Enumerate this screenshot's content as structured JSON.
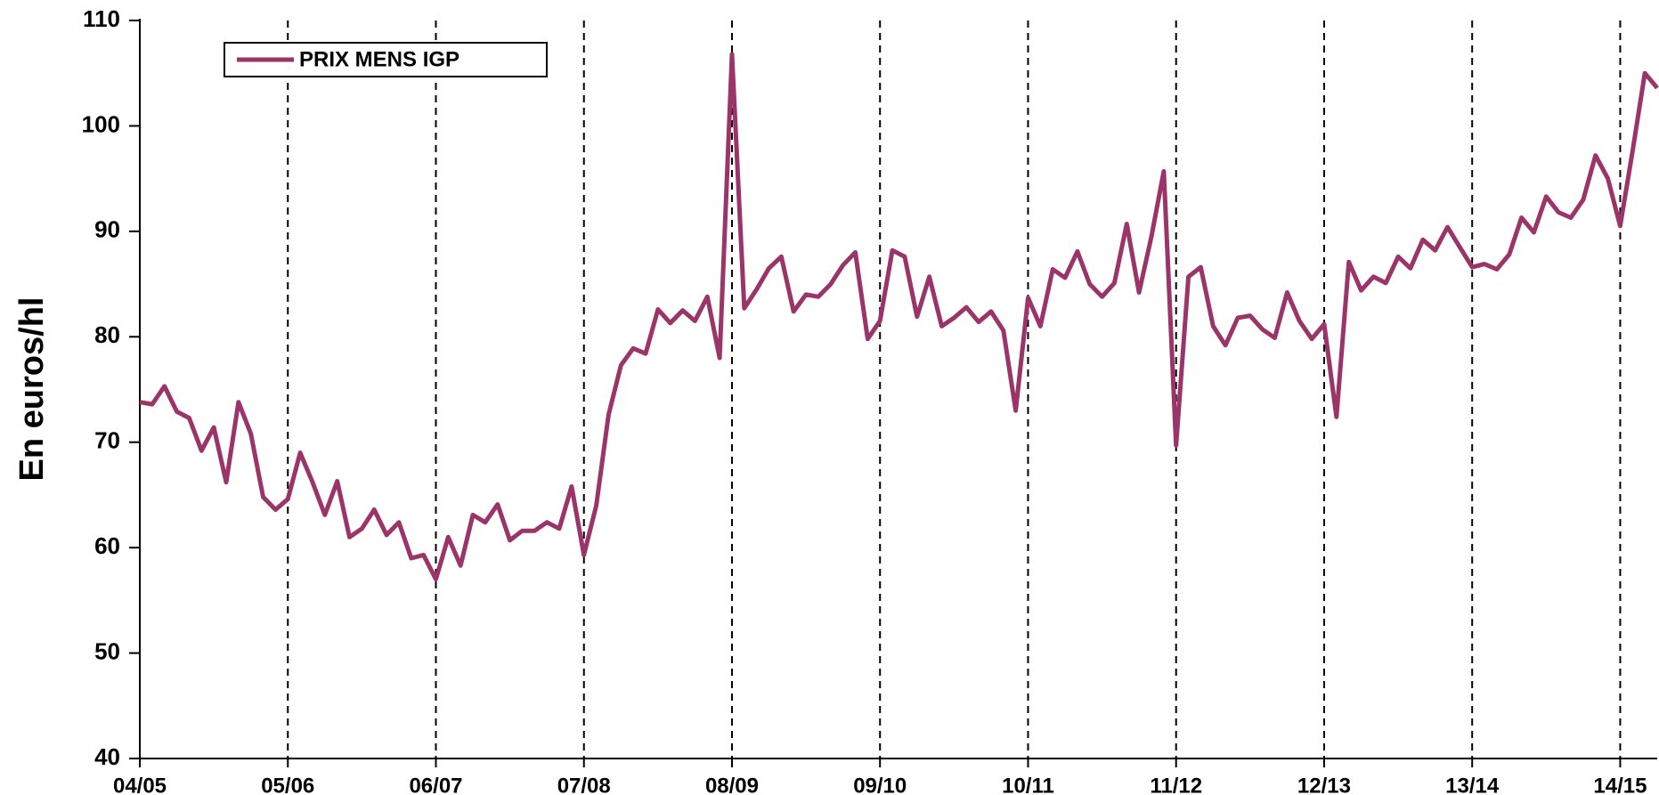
{
  "chart_data": {
    "type": "line",
    "y_label": "En euros/hl",
    "categories": [
      "04/05",
      null,
      null,
      null,
      null,
      null,
      null,
      null,
      null,
      null,
      null,
      null,
      "05/06",
      null,
      null,
      null,
      null,
      null,
      null,
      null,
      null,
      null,
      null,
      null,
      "06/07",
      null,
      null,
      null,
      null,
      null,
      null,
      null,
      null,
      null,
      null,
      null,
      "07/08",
      null,
      null,
      null,
      null,
      null,
      null,
      null,
      null,
      null,
      null,
      null,
      "08/09",
      null,
      null,
      null,
      null,
      null,
      null,
      null,
      null,
      null,
      null,
      null,
      "09/10",
      null,
      null,
      null,
      null,
      null,
      null,
      null,
      null,
      null,
      null,
      null,
      "10/11",
      null,
      null,
      null,
      null,
      null,
      null,
      null,
      null,
      null,
      null,
      null,
      "11/12",
      null,
      null,
      null,
      null,
      null,
      null,
      null,
      null,
      null,
      null,
      null,
      "12/13",
      null,
      null,
      null,
      null,
      null,
      null,
      null,
      null,
      null,
      null,
      null,
      "13/14",
      null,
      null,
      null,
      null,
      null,
      null,
      null,
      null,
      null,
      null,
      null,
      "14/15",
      null,
      null,
      null
    ],
    "series": [
      {
        "name": "PRIX MENS IGP",
        "color": "#9b3468",
        "values": [
          73.8,
          73.6,
          75.3,
          72.9,
          72.3,
          69.2,
          71.4,
          66.2,
          73.8,
          70.8,
          64.8,
          63.6,
          64.6,
          69.0,
          66.2,
          63.1,
          66.3,
          61.0,
          61.8,
          63.6,
          61.2,
          62.4,
          59.0,
          59.3,
          57.0,
          61.0,
          58.3,
          63.1,
          62.4,
          64.1,
          60.7,
          61.6,
          61.6,
          62.4,
          61.8,
          65.8,
          59.3,
          64.0,
          72.6,
          77.3,
          78.9,
          78.4,
          82.6,
          81.3,
          82.5,
          81.5,
          83.8,
          78.0,
          106.8,
          82.7,
          84.5,
          86.5,
          87.6,
          82.4,
          84.0,
          83.8,
          85.0,
          86.8,
          88.0,
          79.8,
          81.5,
          88.2,
          87.6,
          81.9,
          85.7,
          81.0,
          81.8,
          82.8,
          81.4,
          82.4,
          80.6,
          73.0,
          83.7,
          81.0,
          86.4,
          85.6,
          88.1,
          85.0,
          83.8,
          85.1,
          90.7,
          84.2,
          89.5,
          95.7,
          69.7,
          85.7,
          86.6,
          81.0,
          79.2,
          81.8,
          82.0,
          80.7,
          79.9,
          84.2,
          81.5,
          79.8,
          81.2,
          72.4,
          87.1,
          84.4,
          85.7,
          85.1,
          87.6,
          86.5,
          89.2,
          88.2,
          90.4,
          88.5,
          86.6,
          86.9,
          86.4,
          87.8,
          91.3,
          89.9,
          93.3,
          91.8,
          91.3,
          93.0,
          97.2,
          95.0,
          90.5,
          97.6,
          105.0,
          103.6
        ]
      }
    ],
    "ylim": [
      40,
      110
    ],
    "yticks": [
      40,
      50,
      60,
      70,
      80,
      90,
      100,
      110
    ],
    "legend": "top-left"
  }
}
